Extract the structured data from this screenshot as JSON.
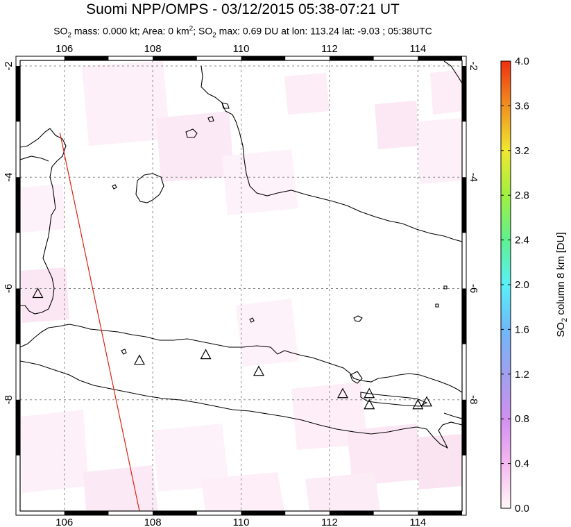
{
  "header": {
    "title": "Suomi NPP/OMPS - 03/12/2015 05:38-07:21 UT",
    "subtitle_parts": {
      "p1": "SO",
      "p1_sub": "2",
      "p2": " mass: 0.000 kt; Area: 0 km",
      "p2_sup": "2",
      "p3": "; SO",
      "p3_sub": "2",
      "p4": " max: 0.69 DU at lon: 113.24 lat: -9.03 ; 05:38UTC"
    }
  },
  "map": {
    "lon_range": [
      105,
      115
    ],
    "lat_range": [
      -10,
      -1.9
    ],
    "lon_ticks": [
      "106",
      "108",
      "110",
      "112",
      "114"
    ],
    "lat_ticks": [
      "-2",
      "-4",
      "-6",
      "-8"
    ],
    "lon_tick_values": [
      106,
      108,
      110,
      112,
      114
    ],
    "lat_tick_values": [
      -2,
      -4,
      -6,
      -8
    ],
    "gridlines": true,
    "volcanoes": [
      {
        "lon": 105.4,
        "lat": -6.1
      },
      {
        "lon": 107.7,
        "lat": -7.3
      },
      {
        "lon": 109.2,
        "lat": -7.2
      },
      {
        "lon": 110.4,
        "lat": -7.5
      },
      {
        "lon": 112.3,
        "lat": -7.9
      },
      {
        "lon": 112.9,
        "lat": -7.9
      },
      {
        "lon": 112.9,
        "lat": -8.1
      },
      {
        "lon": 114.0,
        "lat": -8.1
      },
      {
        "lon": 114.2,
        "lat": -8.05
      }
    ],
    "swath_edge": {
      "start": {
        "lon": 105.9,
        "lat": -3.2
      },
      "end": {
        "lon": 107.7,
        "lat": -10.0
      },
      "color": "#e02010"
    }
  },
  "colorbar": {
    "label_main": "SO",
    "label_sub": "2",
    "label_rest": " column 8 km [DU]",
    "ticks": [
      "4.0",
      "3.6",
      "3.2",
      "2.8",
      "2.4",
      "2.0",
      "1.6",
      "1.2",
      "0.8",
      "0.4",
      "0.0"
    ],
    "tick_values": [
      4.0,
      3.6,
      3.2,
      2.8,
      2.4,
      2.0,
      1.6,
      1.2,
      0.8,
      0.4,
      0.0
    ],
    "range": [
      0.0,
      4.0
    ],
    "colors": [
      "#fff8f8",
      "#f5b8f0",
      "#d090f0",
      "#a0a0ee",
      "#70b8f8",
      "#58f0f8",
      "#60f090",
      "#a0f040",
      "#f0e830",
      "#f09020",
      "#f03010"
    ]
  }
}
